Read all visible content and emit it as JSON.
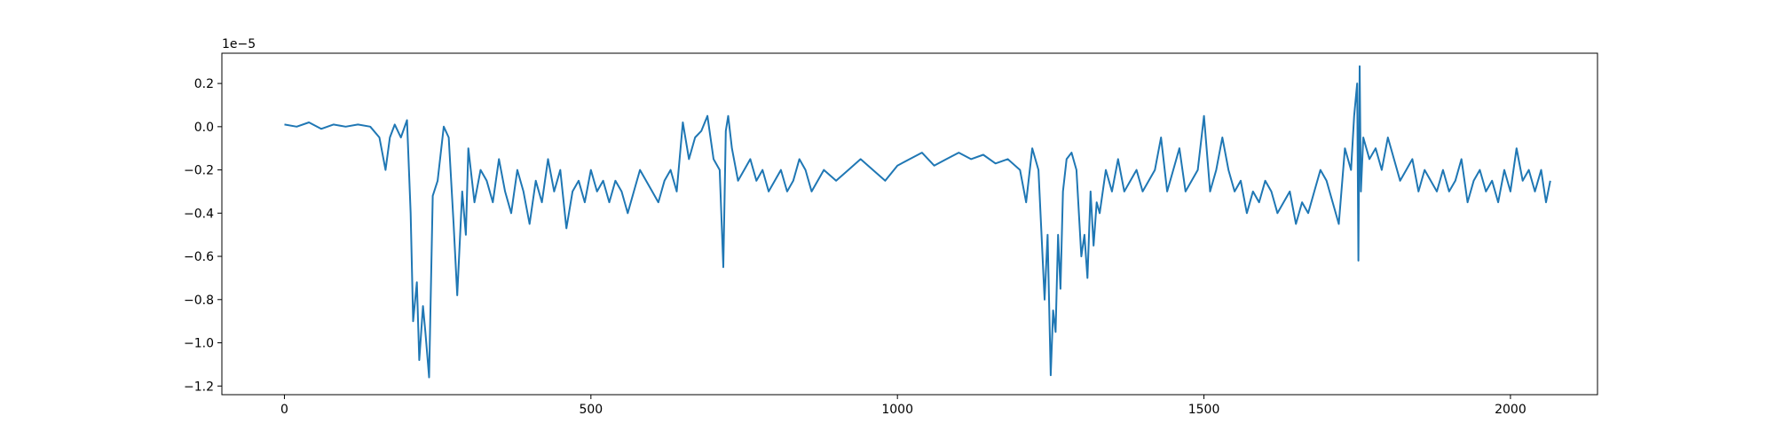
{
  "chart_data": {
    "type": "line",
    "title": "",
    "xlabel": "",
    "ylabel": "",
    "y_offset_label": "1e−5",
    "xlim": [
      -102,
      2142
    ],
    "ylim": [
      -1.24,
      0.34
    ],
    "grid": false,
    "x_ticks": [
      0,
      500,
      1000,
      1500,
      2000
    ],
    "x_tick_labels": [
      "0",
      "500",
      "1000",
      "1500",
      "2000"
    ],
    "y_ticks": [
      0.2,
      0.0,
      -0.2,
      -0.4,
      -0.6,
      -0.8,
      -1.0,
      -1.2
    ],
    "y_tick_labels": [
      "0.2",
      "0.0",
      "−0.2",
      "−0.4",
      "−0.6",
      "−0.8",
      "−1.0",
      "−1.2"
    ],
    "series": [
      {
        "color": "#1f77b4",
        "x": [
          0,
          20,
          40,
          60,
          80,
          100,
          120,
          140,
          155,
          165,
          172,
          180,
          190,
          200,
          206,
          210,
          216,
          220,
          226,
          230,
          236,
          242,
          250,
          260,
          268,
          276,
          282,
          290,
          296,
          300,
          310,
          320,
          330,
          340,
          350,
          360,
          370,
          380,
          390,
          400,
          410,
          420,
          430,
          440,
          450,
          460,
          470,
          480,
          490,
          500,
          510,
          520,
          530,
          540,
          550,
          560,
          570,
          580,
          590,
          600,
          610,
          620,
          630,
          640,
          650,
          660,
          670,
          680,
          690,
          700,
          710,
          716,
          720,
          724,
          730,
          740,
          750,
          760,
          770,
          780,
          790,
          800,
          810,
          820,
          830,
          840,
          850,
          860,
          870,
          880,
          900,
          920,
          940,
          960,
          980,
          1000,
          1020,
          1040,
          1060,
          1080,
          1100,
          1120,
          1140,
          1160,
          1180,
          1200,
          1210,
          1220,
          1230,
          1240,
          1245,
          1250,
          1254,
          1258,
          1262,
          1266,
          1270,
          1276,
          1284,
          1292,
          1300,
          1305,
          1310,
          1315,
          1320,
          1325,
          1330,
          1340,
          1350,
          1360,
          1370,
          1380,
          1390,
          1400,
          1410,
          1420,
          1430,
          1440,
          1450,
          1460,
          1470,
          1480,
          1490,
          1500,
          1510,
          1520,
          1530,
          1540,
          1550,
          1560,
          1570,
          1580,
          1590,
          1600,
          1610,
          1620,
          1630,
          1640,
          1650,
          1660,
          1670,
          1680,
          1690,
          1700,
          1710,
          1720,
          1730,
          1740,
          1745,
          1750,
          1752,
          1754,
          1756,
          1760,
          1770,
          1780,
          1790,
          1800,
          1810,
          1820,
          1830,
          1840,
          1850,
          1860,
          1870,
          1880,
          1890,
          1900,
          1910,
          1920,
          1930,
          1940,
          1950,
          1960,
          1970,
          1980,
          1990,
          2000,
          2010,
          2020,
          2030,
          2040,
          2050,
          2058,
          2065
        ],
        "y": [
          0.01,
          0.0,
          0.02,
          -0.01,
          0.01,
          0.0,
          0.01,
          0.0,
          -0.05,
          -0.2,
          -0.05,
          0.01,
          -0.05,
          0.03,
          -0.4,
          -0.9,
          -0.72,
          -1.08,
          -0.83,
          -0.95,
          -1.16,
          -0.32,
          -0.25,
          0.0,
          -0.05,
          -0.45,
          -0.78,
          -0.3,
          -0.5,
          -0.1,
          -0.35,
          -0.2,
          -0.25,
          -0.35,
          -0.15,
          -0.3,
          -0.4,
          -0.2,
          -0.3,
          -0.45,
          -0.25,
          -0.35,
          -0.15,
          -0.3,
          -0.2,
          -0.47,
          -0.3,
          -0.25,
          -0.35,
          -0.2,
          -0.3,
          -0.25,
          -0.35,
          -0.25,
          -0.3,
          -0.4,
          -0.3,
          -0.2,
          -0.25,
          -0.3,
          -0.35,
          -0.25,
          -0.2,
          -0.3,
          0.02,
          -0.15,
          -0.05,
          -0.02,
          0.05,
          -0.15,
          -0.2,
          -0.65,
          -0.02,
          0.05,
          -0.1,
          -0.25,
          -0.2,
          -0.15,
          -0.25,
          -0.2,
          -0.3,
          -0.25,
          -0.2,
          -0.3,
          -0.25,
          -0.15,
          -0.2,
          -0.3,
          -0.25,
          -0.2,
          -0.25,
          -0.2,
          -0.15,
          -0.2,
          -0.25,
          -0.18,
          -0.15,
          -0.12,
          -0.18,
          -0.15,
          -0.12,
          -0.15,
          -0.13,
          -0.17,
          -0.15,
          -0.2,
          -0.35,
          -0.1,
          -0.2,
          -0.8,
          -0.5,
          -1.15,
          -0.85,
          -0.95,
          -0.5,
          -0.75,
          -0.3,
          -0.15,
          -0.12,
          -0.2,
          -0.6,
          -0.5,
          -0.7,
          -0.3,
          -0.55,
          -0.35,
          -0.4,
          -0.2,
          -0.3,
          -0.15,
          -0.3,
          -0.25,
          -0.2,
          -0.3,
          -0.25,
          -0.2,
          -0.05,
          -0.3,
          -0.2,
          -0.1,
          -0.3,
          -0.25,
          -0.2,
          0.05,
          -0.3,
          -0.2,
          -0.05,
          -0.2,
          -0.3,
          -0.25,
          -0.4,
          -0.3,
          -0.35,
          -0.25,
          -0.3,
          -0.4,
          -0.35,
          -0.3,
          -0.45,
          -0.35,
          -0.4,
          -0.3,
          -0.2,
          -0.25,
          -0.35,
          -0.45,
          -0.1,
          -0.2,
          0.05,
          0.2,
          -0.62,
          0.28,
          -0.3,
          -0.05,
          -0.15,
          -0.1,
          -0.2,
          -0.05,
          -0.15,
          -0.25,
          -0.2,
          -0.15,
          -0.3,
          -0.2,
          -0.25,
          -0.3,
          -0.2,
          -0.3,
          -0.25,
          -0.15,
          -0.35,
          -0.25,
          -0.2,
          -0.3,
          -0.25,
          -0.35,
          -0.2,
          -0.3,
          -0.1,
          -0.25,
          -0.2,
          -0.3,
          -0.2,
          -0.35,
          -0.25
        ]
      }
    ]
  }
}
